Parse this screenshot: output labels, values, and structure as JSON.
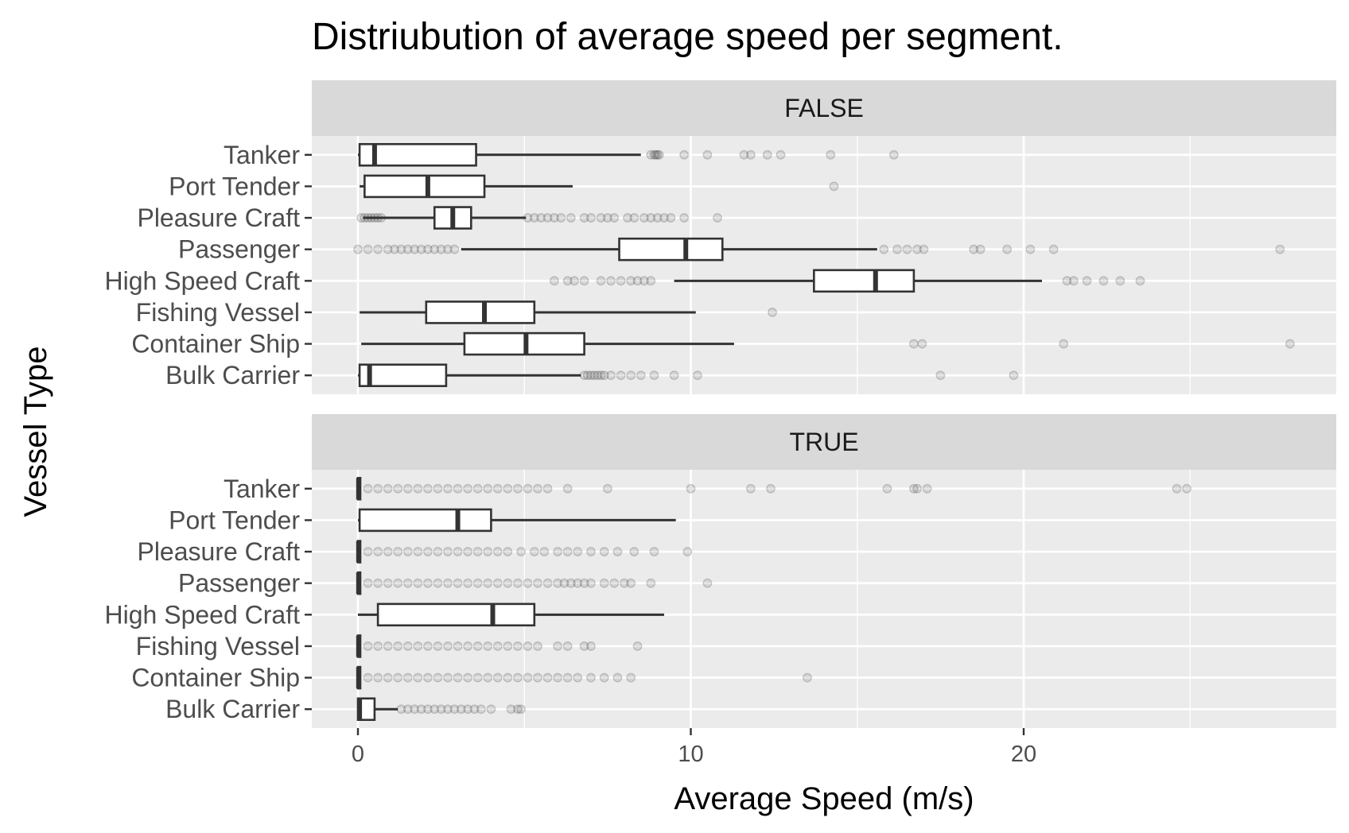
{
  "chart_data": {
    "type": "boxplot",
    "orientation": "horizontal",
    "title": "Distriubution of average speed per segment.",
    "xlabel": "Average Speed (m/s)",
    "ylabel": "Vessel Type",
    "xlim": [
      -1.4,
      29
    ],
    "x_ticks": [
      0,
      10,
      20
    ],
    "x_minor_ticks": [
      5,
      15,
      25
    ],
    "categories": [
      "Tanker",
      "Port Tender",
      "Pleasure Craft",
      "Passenger",
      "High Speed Craft",
      "Fishing Vessel",
      "Container Ship",
      "Bulk Carrier"
    ],
    "grid": true,
    "colors": {
      "panel_bg": "#ebebeb",
      "strip_bg": "#d9d9d9",
      "grid": "#ffffff",
      "box_line": "#333333",
      "outlier": "#333333"
    },
    "panels": [
      {
        "label": "FALSE",
        "boxes": [
          {
            "category": "Tanker",
            "whisker_low": 0.0,
            "q1": 0.05,
            "median": 0.5,
            "q3": 3.55,
            "whisker_high": 8.5,
            "outliers": [
              8.8,
              8.9,
              8.95,
              9.0,
              9.05,
              9.8,
              10.5,
              11.6,
              11.8,
              12.3,
              12.7,
              14.2,
              16.1
            ]
          },
          {
            "category": "Port Tender",
            "whisker_low": 0.05,
            "q1": 0.2,
            "median": 2.1,
            "q3": 3.8,
            "whisker_high": 6.45,
            "outliers": [
              14.3
            ]
          },
          {
            "category": "Pleasure Craft",
            "whisker_low": 0.15,
            "q1": 2.3,
            "median": 2.85,
            "q3": 3.4,
            "whisker_high": 5.05,
            "outliers": [
              0.1,
              0.2,
              0.3,
              0.4,
              0.5,
              0.6,
              0.7,
              5.1,
              5.3,
              5.5,
              5.7,
              5.9,
              6.1,
              6.4,
              6.8,
              7.0,
              7.3,
              7.5,
              7.7,
              8.1,
              8.3,
              8.6,
              8.8,
              9.0,
              9.2,
              9.4,
              9.8,
              10.8
            ]
          },
          {
            "category": "Passenger",
            "whisker_low": 3.1,
            "q1": 7.85,
            "median": 9.85,
            "q3": 10.95,
            "whisker_high": 15.6,
            "outliers": [
              0.0,
              0.3,
              0.6,
              0.9,
              1.1,
              1.3,
              1.5,
              1.7,
              1.9,
              2.1,
              2.3,
              2.5,
              2.7,
              2.9,
              15.8,
              16.2,
              16.5,
              16.8,
              17.0,
              18.5,
              18.7,
              19.5,
              20.2,
              20.9,
              27.7
            ]
          },
          {
            "category": "High Speed Craft",
            "whisker_low": 9.5,
            "q1": 13.7,
            "median": 15.55,
            "q3": 16.7,
            "whisker_high": 20.55,
            "outliers": [
              5.9,
              6.3,
              6.5,
              6.8,
              7.3,
              7.6,
              7.9,
              8.2,
              8.4,
              8.6,
              8.8,
              21.3,
              21.5,
              21.9,
              22.4,
              22.9,
              23.5
            ]
          },
          {
            "category": "Fishing Vessel",
            "whisker_low": 0.05,
            "q1": 2.05,
            "median": 3.8,
            "q3": 5.3,
            "whisker_high": 10.15,
            "outliers": [
              12.45
            ]
          },
          {
            "category": "Container Ship",
            "whisker_low": 0.1,
            "q1": 3.2,
            "median": 5.05,
            "q3": 6.8,
            "whisker_high": 11.3,
            "outliers": [
              16.7,
              16.95,
              21.2,
              28.0
            ]
          },
          {
            "category": "Bulk Carrier",
            "whisker_low": 0.0,
            "q1": 0.05,
            "median": 0.35,
            "q3": 2.65,
            "whisker_high": 6.7,
            "outliers": [
              6.8,
              6.9,
              7.0,
              7.1,
              7.2,
              7.3,
              7.4,
              7.6,
              7.9,
              8.2,
              8.5,
              8.9,
              9.5,
              10.2,
              17.5,
              19.7
            ]
          }
        ]
      },
      {
        "label": "TRUE",
        "boxes": [
          {
            "category": "Tanker",
            "whisker_low": 0.0,
            "q1": 0.0,
            "median": 0.02,
            "q3": 0.05,
            "whisker_high": 0.1,
            "outliers": [
              0.3,
              0.6,
              0.9,
              1.2,
              1.5,
              1.8,
              2.1,
              2.4,
              2.7,
              3.0,
              3.3,
              3.6,
              3.9,
              4.2,
              4.5,
              4.8,
              5.1,
              5.4,
              5.7,
              6.3,
              7.5,
              10.0,
              11.8,
              12.4,
              15.9,
              16.7,
              16.8,
              17.1,
              24.6,
              24.9
            ]
          },
          {
            "category": "Port Tender",
            "whisker_low": 0.0,
            "q1": 0.05,
            "median": 3.0,
            "q3": 4.0,
            "whisker_high": 9.55,
            "outliers": []
          },
          {
            "category": "Pleasure Craft",
            "whisker_low": 0.0,
            "q1": 0.0,
            "median": 0.02,
            "q3": 0.05,
            "whisker_high": 0.1,
            "outliers": [
              0.3,
              0.6,
              0.9,
              1.2,
              1.5,
              1.8,
              2.1,
              2.4,
              2.7,
              3.0,
              3.3,
              3.6,
              3.9,
              4.2,
              4.5,
              4.9,
              5.3,
              5.6,
              6.0,
              6.3,
              6.6,
              7.0,
              7.4,
              7.8,
              8.3,
              8.9,
              9.9
            ]
          },
          {
            "category": "Passenger",
            "whisker_low": 0.0,
            "q1": 0.0,
            "median": 0.02,
            "q3": 0.05,
            "whisker_high": 0.1,
            "outliers": [
              0.3,
              0.6,
              0.9,
              1.2,
              1.5,
              1.8,
              2.1,
              2.4,
              2.7,
              3.0,
              3.3,
              3.6,
              3.9,
              4.2,
              4.5,
              4.8,
              5.1,
              5.4,
              5.7,
              6.0,
              6.2,
              6.4,
              6.6,
              6.8,
              7.0,
              7.4,
              7.7,
              8.0,
              8.2,
              8.8,
              10.5
            ]
          },
          {
            "category": "High Speed Craft",
            "whisker_low": 0.0,
            "q1": 0.6,
            "median": 4.05,
            "q3": 5.3,
            "whisker_high": 9.2,
            "outliers": []
          },
          {
            "category": "Fishing Vessel",
            "whisker_low": 0.0,
            "q1": 0.0,
            "median": 0.02,
            "q3": 0.05,
            "whisker_high": 0.1,
            "outliers": [
              0.3,
              0.6,
              0.9,
              1.2,
              1.5,
              1.8,
              2.1,
              2.4,
              2.7,
              3.0,
              3.3,
              3.6,
              3.9,
              4.2,
              4.5,
              4.8,
              5.1,
              5.4,
              6.0,
              6.3,
              6.8,
              7.0,
              8.4
            ]
          },
          {
            "category": "Container Ship",
            "whisker_low": 0.0,
            "q1": 0.0,
            "median": 0.02,
            "q3": 0.05,
            "whisker_high": 0.1,
            "outliers": [
              0.3,
              0.6,
              0.9,
              1.2,
              1.5,
              1.8,
              2.1,
              2.4,
              2.7,
              3.0,
              3.3,
              3.6,
              3.9,
              4.2,
              4.5,
              4.8,
              5.1,
              5.4,
              5.7,
              6.0,
              6.3,
              6.6,
              7.0,
              7.4,
              7.8,
              8.2,
              13.5
            ]
          },
          {
            "category": "Bulk Carrier",
            "whisker_low": 0.0,
            "q1": 0.0,
            "median": 0.05,
            "q3": 0.5,
            "whisker_high": 1.2,
            "outliers": [
              1.3,
              1.5,
              1.7,
              1.9,
              2.1,
              2.3,
              2.5,
              2.7,
              2.9,
              3.1,
              3.3,
              3.5,
              3.7,
              4.0,
              4.6,
              4.8,
              4.9
            ]
          }
        ]
      }
    ]
  }
}
